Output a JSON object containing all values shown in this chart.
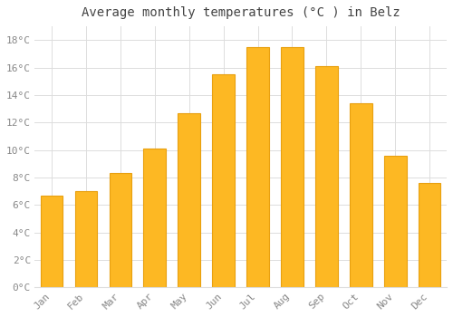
{
  "title": "Average monthly temperatures (°C ) in Belz",
  "months": [
    "Jan",
    "Feb",
    "Mar",
    "Apr",
    "May",
    "Jun",
    "Jul",
    "Aug",
    "Sep",
    "Oct",
    "Nov",
    "Dec"
  ],
  "values": [
    6.7,
    7.0,
    8.3,
    10.1,
    12.7,
    15.5,
    17.5,
    17.5,
    16.1,
    13.4,
    9.6,
    7.6
  ],
  "bar_color": "#FDB823",
  "bar_edge_color": "#E8A010",
  "background_color": "#FFFFFF",
  "grid_color": "#DDDDDD",
  "ylim": [
    0,
    19
  ],
  "yticks": [
    0,
    2,
    4,
    6,
    8,
    10,
    12,
    14,
    16,
    18
  ],
  "tick_label_color": "#888888",
  "title_color": "#444444",
  "title_fontsize": 10,
  "tick_fontsize": 8,
  "font_family": "monospace",
  "bar_width": 0.65
}
